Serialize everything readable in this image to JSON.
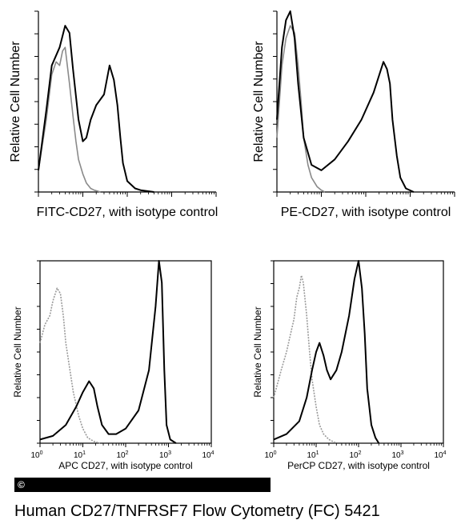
{
  "figure": {
    "caption": "Human CD27/TNFRSF7 Flow Cytometry (FC) 5421",
    "copyright_symbol": "©"
  },
  "chart_data": [
    {
      "type": "line",
      "panel": "top-left",
      "ylabel": "Relative Cell Number",
      "xlabel": "FITC-CD27, with isotype control",
      "x_scale": "log",
      "xlim": [
        1,
        10000
      ],
      "ylim": [
        0,
        100
      ],
      "grid": false,
      "series": [
        {
          "name": "",
          "role": "isotype control",
          "color": "#8a8a8a",
          "x": [
            1,
            1.5,
            2,
            2.5,
            3,
            3.5,
            4,
            5,
            6,
            7,
            8,
            10,
            12,
            15,
            18,
            25
          ],
          "y": [
            12,
            40,
            65,
            72,
            70,
            78,
            80,
            60,
            42,
            28,
            18,
            10,
            5,
            2,
            1,
            0
          ]
        },
        {
          "name": "",
          "role": "CD27 stained",
          "color": "#000000",
          "x": [
            1,
            1.5,
            2,
            3,
            4,
            5,
            6,
            8,
            10,
            12,
            15,
            20,
            30,
            40,
            50,
            60,
            70,
            80,
            100,
            150,
            200,
            400
          ],
          "y": [
            12,
            45,
            70,
            80,
            92,
            88,
            68,
            40,
            28,
            30,
            40,
            48,
            54,
            70,
            62,
            48,
            30,
            16,
            6,
            2,
            1,
            0
          ]
        }
      ]
    },
    {
      "type": "line",
      "panel": "top-right",
      "ylabel": "Relative Cell Number",
      "xlabel": "PE-CD27, with isotype control",
      "x_scale": "log",
      "xlim": [
        1,
        10000
      ],
      "ylim": [
        0,
        100
      ],
      "grid": false,
      "series": [
        {
          "name": "",
          "role": "isotype control",
          "color": "#8a8a8a",
          "x": [
            1,
            1.3,
            1.6,
            2,
            2.5,
            3,
            3.5,
            4,
            5,
            6,
            8,
            10,
            12
          ],
          "y": [
            30,
            70,
            85,
            92,
            88,
            70,
            50,
            30,
            15,
            8,
            3,
            1,
            0
          ]
        },
        {
          "name": "",
          "role": "CD27 stained",
          "color": "#000000",
          "x": [
            1,
            1.3,
            1.6,
            2,
            2.5,
            3,
            4,
            6,
            10,
            20,
            40,
            80,
            150,
            250,
            300,
            350,
            400,
            500,
            600,
            800,
            1200
          ],
          "y": [
            40,
            80,
            95,
            100,
            85,
            60,
            30,
            15,
            12,
            18,
            28,
            40,
            55,
            72,
            68,
            60,
            40,
            20,
            8,
            2,
            0
          ]
        }
      ]
    },
    {
      "type": "line",
      "panel": "bottom-left",
      "ylabel": "Relative Cell Number",
      "xlabel": "APC CD27, with isotype control",
      "x_scale": "log",
      "xlim": [
        1,
        10000
      ],
      "ylim": [
        0,
        100
      ],
      "grid": false,
      "x_ticks": [
        {
          "value": 1,
          "base": "10",
          "exp": "0"
        },
        {
          "value": 10,
          "base": "10",
          "exp": "1"
        },
        {
          "value": 100,
          "base": "10",
          "exp": "2"
        },
        {
          "value": 1000,
          "base": "10",
          "exp": "3"
        },
        {
          "value": 10000,
          "base": "10",
          "exp": "4"
        }
      ],
      "series": [
        {
          "name": "",
          "role": "isotype control",
          "color": "#9a9a9a",
          "dash": true,
          "x": [
            1,
            1.3,
            1.7,
            2,
            2.5,
            3,
            3.5,
            4,
            5,
            6,
            8,
            10,
            13,
            18,
            25
          ],
          "y": [
            55,
            65,
            70,
            78,
            85,
            82,
            70,
            55,
            40,
            28,
            15,
            8,
            3,
            1,
            0
          ]
        },
        {
          "name": "",
          "role": "CD27 stained",
          "color": "#000000",
          "x": [
            1,
            2,
            4,
            7,
            10,
            14,
            18,
            22,
            28,
            40,
            60,
            100,
            200,
            350,
            500,
            600,
            700,
            800,
            900,
            1100,
            1500
          ],
          "y": [
            2,
            4,
            10,
            20,
            28,
            34,
            30,
            20,
            10,
            5,
            5,
            8,
            18,
            40,
            75,
            100,
            88,
            40,
            10,
            2,
            0
          ]
        }
      ]
    },
    {
      "type": "line",
      "panel": "bottom-right",
      "ylabel": "Relative Cell Number",
      "xlabel": "PerCP CD27, with isotype control",
      "x_scale": "log",
      "xlim": [
        1,
        10000
      ],
      "ylim": [
        0,
        100
      ],
      "grid": false,
      "x_ticks": [
        {
          "value": 1,
          "base": "10",
          "exp": "0"
        },
        {
          "value": 10,
          "base": "10",
          "exp": "1"
        },
        {
          "value": 100,
          "base": "10",
          "exp": "2"
        },
        {
          "value": 1000,
          "base": "10",
          "exp": "3"
        },
        {
          "value": 10000,
          "base": "10",
          "exp": "4"
        }
      ],
      "series": [
        {
          "name": "",
          "role": "isotype control",
          "color": "#9a9a9a",
          "dash": true,
          "x": [
            1,
            1.5,
            2,
            2.5,
            3,
            3.5,
            4,
            4.5,
            5,
            6,
            7,
            8,
            10,
            12,
            15,
            20,
            30
          ],
          "y": [
            25,
            40,
            50,
            60,
            68,
            80,
            85,
            92,
            88,
            70,
            50,
            35,
            20,
            10,
            5,
            2,
            0
          ]
        },
        {
          "name": "",
          "role": "CD27 stained",
          "color": "#000000",
          "x": [
            1,
            2,
            4,
            6,
            8,
            10,
            12,
            15,
            18,
            22,
            30,
            40,
            60,
            80,
            100,
            120,
            140,
            160,
            200,
            250,
            300
          ],
          "y": [
            2,
            5,
            12,
            25,
            40,
            50,
            55,
            48,
            40,
            35,
            40,
            50,
            70,
            90,
            100,
            85,
            60,
            30,
            10,
            3,
            0
          ]
        }
      ]
    }
  ]
}
